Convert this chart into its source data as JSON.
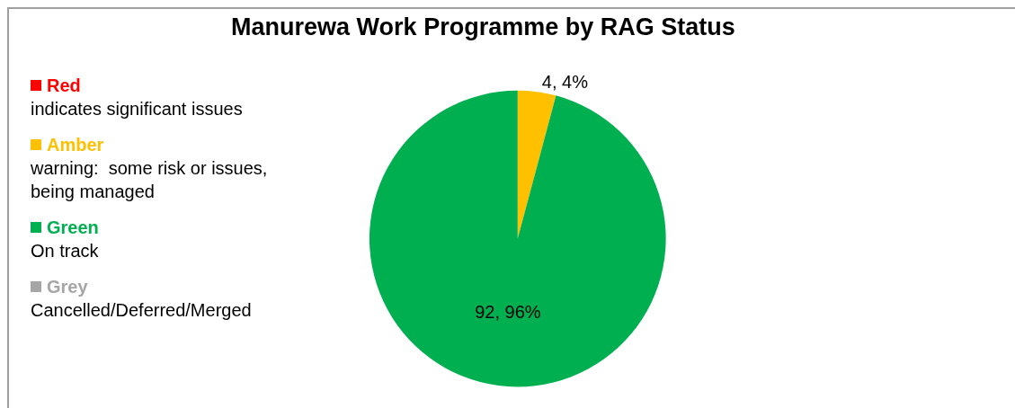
{
  "chart_data": {
    "type": "pie",
    "title": "Manurewa Work Programme by RAG Status",
    "categories": [
      "Red",
      "Amber",
      "Green",
      "Grey"
    ],
    "values": [
      0,
      4,
      92,
      0
    ],
    "colors": [
      "#ff0000",
      "#ffc000",
      "#00b050",
      "#a6a6a6"
    ],
    "value_labels": [
      null,
      "4, 4%",
      "92, 96%",
      null
    ],
    "annotations": [
      "indicates significant issues",
      "warning:  some risk or issues, being managed",
      "On track",
      "Cancelled/Deferred/Merged"
    ],
    "legend": "left"
  }
}
